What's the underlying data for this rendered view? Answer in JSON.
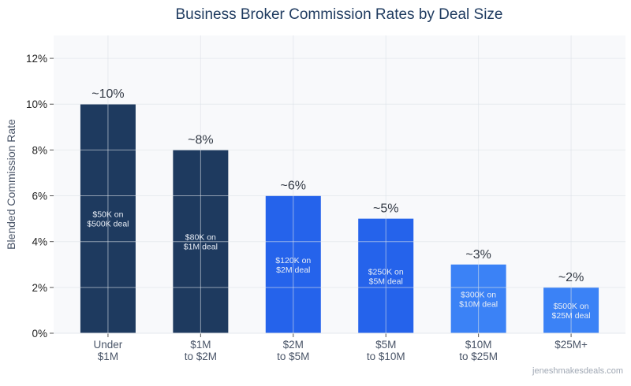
{
  "chart_data": {
    "type": "bar",
    "title": "Business Broker Commission Rates by Deal Size",
    "xlabel": "",
    "ylabel": "Blended Commission Rate",
    "categories": [
      [
        "Under",
        "$1M"
      ],
      [
        "$1M",
        "to $2M"
      ],
      [
        "$2M",
        "to $5M"
      ],
      [
        "$5M",
        "to $10M"
      ],
      [
        "$10M",
        "to $25M"
      ],
      [
        "$25M+"
      ]
    ],
    "values": [
      10,
      8,
      6,
      5,
      3,
      2
    ],
    "value_labels": [
      "~10%",
      "~8%",
      "~6%",
      "~5%",
      "~3%",
      "~2%"
    ],
    "inner_labels": [
      [
        "$50K on",
        "$500K deal"
      ],
      [
        "$80K on",
        "$1M deal"
      ],
      [
        "$120K on",
        "$2M deal"
      ],
      [
        "$250K on",
        "$5M deal"
      ],
      [
        "$300K on",
        "$10M deal"
      ],
      [
        "$500K on",
        "$25M deal"
      ]
    ],
    "bar_colors": [
      "#1e3a5f",
      "#1e3a5f",
      "#2563eb",
      "#2563eb",
      "#3b82f6",
      "#3b82f6"
    ],
    "ylim": [
      0,
      13
    ],
    "yticks": [
      0,
      2,
      4,
      6,
      8,
      10,
      12
    ],
    "ytick_labels": [
      "0%",
      "2%",
      "4%",
      "6%",
      "8%",
      "10%",
      "12%"
    ],
    "grid": true,
    "watermark": "jeneshmakesdeals.com"
  }
}
